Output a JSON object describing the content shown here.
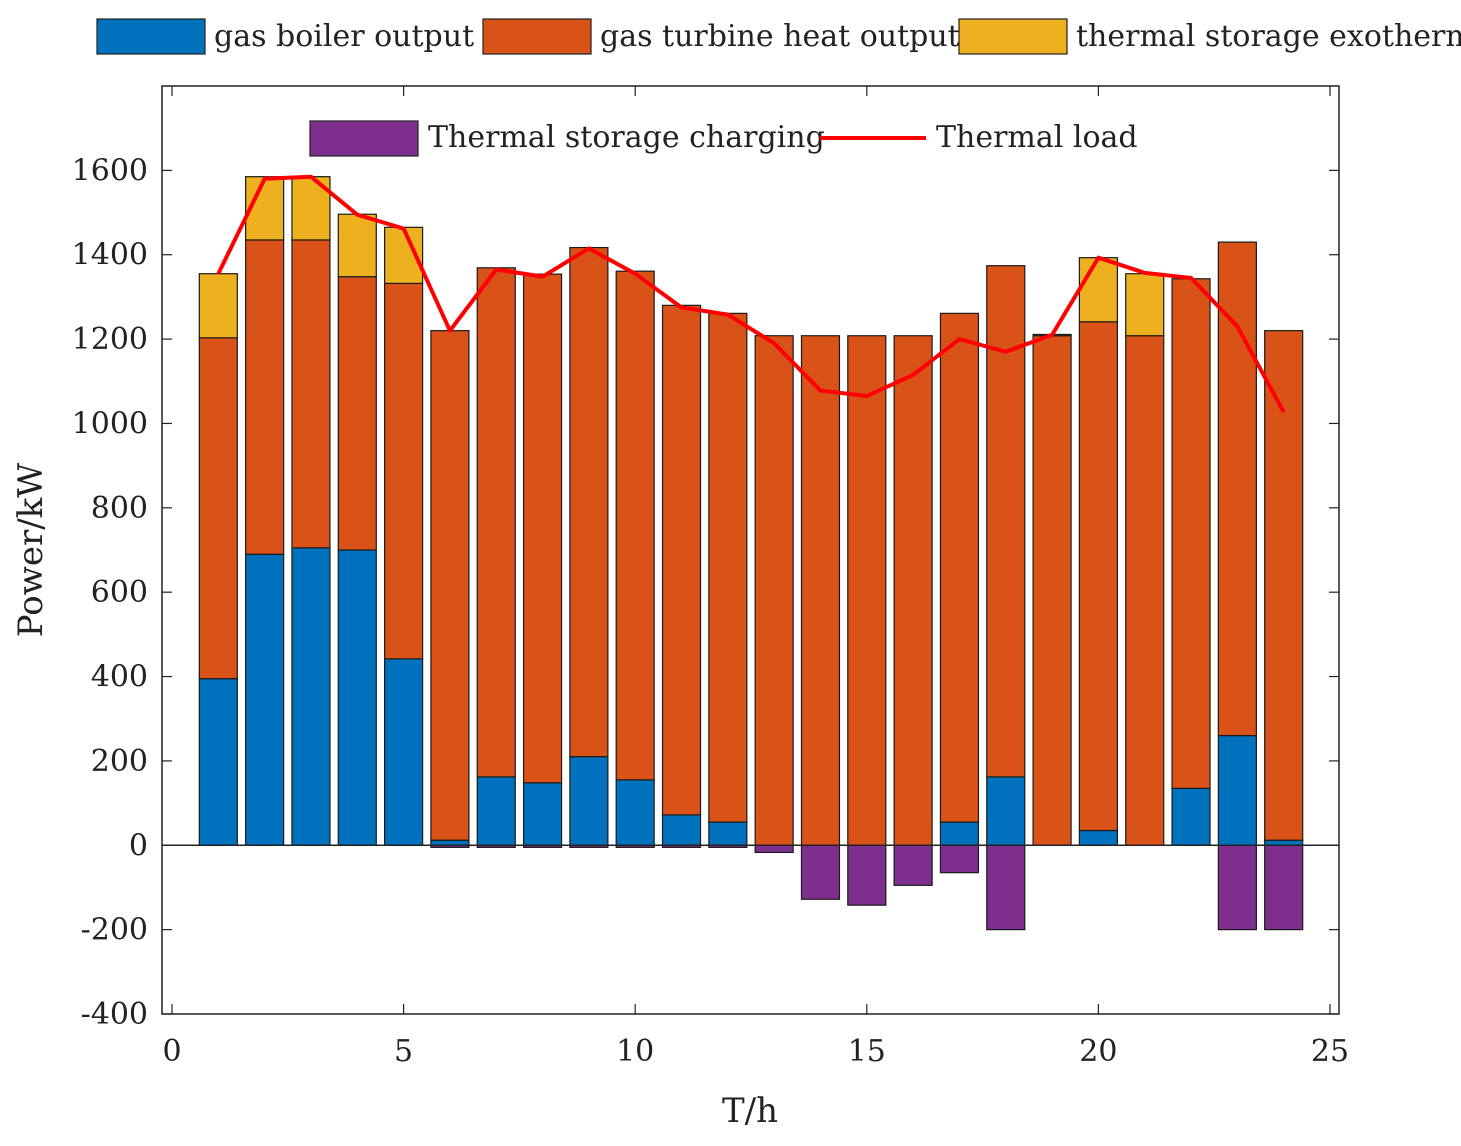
{
  "chart_data": {
    "type": "bar",
    "stacked": true,
    "xlabel": "T/h",
    "ylabel": "Power/kW",
    "xlim": [
      0,
      25
    ],
    "ylim": [
      -400,
      1800
    ],
    "xticks": [
      0,
      5,
      10,
      15,
      20,
      25
    ],
    "yticks": [
      -400,
      -200,
      0,
      200,
      400,
      600,
      800,
      1000,
      1200,
      1400,
      1600
    ],
    "x": [
      1,
      2,
      3,
      4,
      5,
      6,
      7,
      8,
      9,
      10,
      11,
      12,
      13,
      14,
      15,
      16,
      17,
      18,
      19,
      20,
      21,
      22,
      23,
      24
    ],
    "series": [
      {
        "name": "gas boiler output",
        "color": "#0072BD",
        "values": [
          395,
          690,
          705,
          700,
          442,
          12,
          162,
          148,
          210,
          155,
          72,
          55,
          0,
          0,
          0,
          0,
          55,
          162,
          0,
          35,
          0,
          135,
          260,
          12
        ]
      },
      {
        "name": "gas turbine heat output",
        "color": "#D95319",
        "values": [
          808,
          745,
          730,
          648,
          890,
          1208,
          1207,
          1206,
          1207,
          1206,
          1208,
          1206,
          1208,
          1208,
          1208,
          1208,
          1206,
          1212,
          1208,
          1206,
          1208,
          1208,
          1170,
          1208
        ]
      },
      {
        "name": "thermal storage exotherm",
        "color": "#EDB120",
        "values": [
          152,
          150,
          150,
          148,
          133,
          0,
          0,
          0,
          0,
          0,
          0,
          0,
          0,
          0,
          0,
          0,
          0,
          0,
          3,
          152,
          147,
          0,
          0,
          0
        ]
      },
      {
        "name": "Thermal storage charging",
        "color": "#7E2F8E",
        "values": [
          0,
          0,
          0,
          0,
          0,
          -5,
          -5,
          -5,
          -5,
          -5,
          -5,
          -5,
          -17,
          -128,
          -142,
          -95,
          -65,
          -200,
          0,
          0,
          0,
          0,
          -200,
          -200
        ]
      },
      {
        "name": "Thermal load",
        "type": "line",
        "color": "#FF0000",
        "values": [
          1355,
          1580,
          1585,
          1495,
          1462,
          1220,
          1365,
          1348,
          1415,
          1355,
          1275,
          1258,
          1190,
          1078,
          1065,
          1115,
          1200,
          1170,
          1210,
          1393,
          1357,
          1345,
          1230,
          1027
        ]
      }
    ]
  }
}
